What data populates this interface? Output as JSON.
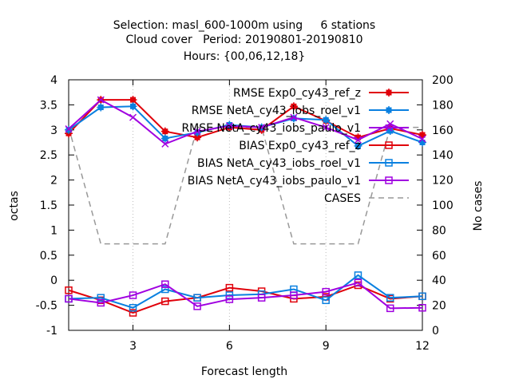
{
  "chart_data": {
    "type": "line",
    "title_lines": [
      "Selection: masl_600-1000m using     6 stations",
      "Cloud cover   Period: 20190801-20190810",
      "Hours: {00,06,12,18}"
    ],
    "xlabel": "Forecast length",
    "ylabel": "octas",
    "y2label": "No cases",
    "xlim": [
      1,
      12
    ],
    "ylim": [
      -1,
      4
    ],
    "y2lim": [
      0,
      200
    ],
    "x_ticks": [
      3,
      6,
      9,
      12
    ],
    "y_ticks": [
      -1,
      -0.5,
      0,
      0.5,
      1,
      1.5,
      2,
      2.5,
      3,
      3.5,
      4
    ],
    "y2_ticks": [
      0,
      20,
      40,
      60,
      80,
      100,
      120,
      140,
      160,
      180,
      200
    ],
    "legend_position": "top-right",
    "x": [
      1,
      2,
      3,
      4,
      5,
      6,
      7,
      8,
      9,
      10,
      11,
      12
    ],
    "series": [
      {
        "name": "RMSE Exp0_cy43_ref_z",
        "color": "#e0000a",
        "marker": "filled-square-plus",
        "dash": "solid",
        "axis": "y",
        "values": [
          2.93,
          3.6,
          3.6,
          2.97,
          2.85,
          3.05,
          3.0,
          3.47,
          3.18,
          2.85,
          3.03,
          2.9
        ]
      },
      {
        "name": "RMSE NetA_cy43_iobs_roel_v1",
        "color": "#0a80e0",
        "marker": "filled-square-plus",
        "dash": "solid",
        "axis": "y",
        "values": [
          3.0,
          3.45,
          3.47,
          2.83,
          2.95,
          3.1,
          3.05,
          3.23,
          3.2,
          2.68,
          2.98,
          2.75
        ]
      },
      {
        "name": "RMSE NetA_cy43_iobs_paulo_v1",
        "color": "#a000e0",
        "marker": "x",
        "dash": "solid",
        "axis": "y",
        "values": [
          3.02,
          3.6,
          3.25,
          2.72,
          2.97,
          3.08,
          3.05,
          3.25,
          3.05,
          2.8,
          3.12,
          2.82
        ]
      },
      {
        "name": "BIAS Exp0_cy43_ref_z",
        "color": "#e0000a",
        "marker": "open-square",
        "dash": "solid",
        "axis": "y",
        "values": [
          -0.2,
          -0.4,
          -0.65,
          -0.42,
          -0.35,
          -0.15,
          -0.22,
          -0.37,
          -0.33,
          -0.1,
          -0.37,
          -0.32
        ]
      },
      {
        "name": "BIAS NetA_cy43_iobs_roel_v1",
        "color": "#0a80e0",
        "marker": "open-square",
        "dash": "solid",
        "axis": "y",
        "values": [
          -0.37,
          -0.35,
          -0.55,
          -0.18,
          -0.35,
          -0.3,
          -0.28,
          -0.18,
          -0.4,
          0.1,
          -0.35,
          -0.32
        ]
      },
      {
        "name": "BIAS NetA_cy43_iobs_paulo_v1",
        "color": "#a000e0",
        "marker": "open-square",
        "dash": "solid",
        "axis": "y",
        "values": [
          -0.37,
          -0.45,
          -0.3,
          -0.08,
          -0.52,
          -0.38,
          -0.35,
          -0.3,
          -0.23,
          -0.05,
          -0.56,
          -0.55
        ]
      },
      {
        "name": "CASES",
        "color": "#999999",
        "marker": "none",
        "dash": "dashed",
        "axis": "y2",
        "values": [
          162,
          69,
          69,
          69,
          162,
          162,
          162,
          69,
          69,
          69,
          162,
          162
        ]
      }
    ]
  }
}
